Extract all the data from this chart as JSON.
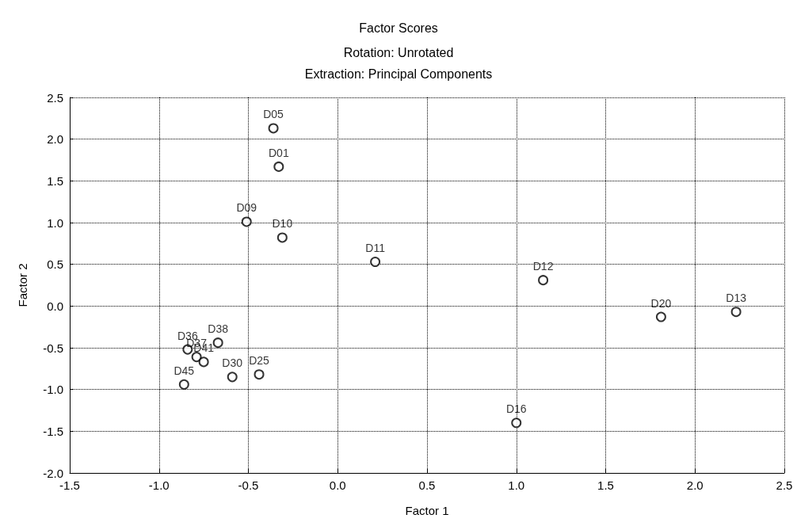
{
  "chart_data": {
    "type": "scatter",
    "title": "Factor Scores",
    "subtitle": "Rotation: Unrotated\nExtraction: Principal Components",
    "xlabel": "Factor 1",
    "ylabel": "Factor 2",
    "xlim": [
      -1.5,
      2.5
    ],
    "ylim": [
      -2.0,
      2.5
    ],
    "xticks": [
      {
        "value": -1.5,
        "label": "-1.5"
      },
      {
        "value": -1,
        "label": "-1.0"
      },
      {
        "value": -0.5,
        "label": "-0.5"
      },
      {
        "value": 0,
        "label": "0.0"
      },
      {
        "value": 0.5,
        "label": "0.5"
      },
      {
        "value": 1,
        "label": "1.0"
      },
      {
        "value": 1.5,
        "label": "1.5"
      },
      {
        "value": 2,
        "label": "2.0"
      },
      {
        "value": 2.5,
        "label": "2.5"
      }
    ],
    "yticks": [
      {
        "value": -2,
        "label": "-2.0"
      },
      {
        "value": -1.5,
        "label": "-1.5"
      },
      {
        "value": -1,
        "label": "-1.0"
      },
      {
        "value": -0.5,
        "label": "-0.5"
      },
      {
        "value": 0,
        "label": "0.0"
      },
      {
        "value": 0.5,
        "label": "0.5"
      },
      {
        "value": 1,
        "label": "1.0"
      },
      {
        "value": 1.5,
        "label": "1.5"
      },
      {
        "value": 2,
        "label": "2.0"
      },
      {
        "value": 2.5,
        "label": "2.5"
      }
    ],
    "grid": true,
    "marker": "circle",
    "legend": false,
    "series": [
      {
        "name": "D05",
        "color": "#000000",
        "x": [
          -0.36
        ],
        "values": [
          2.13
        ]
      },
      {
        "name": "D01",
        "color": "#000000",
        "x": [
          -0.33
        ],
        "values": [
          1.67
        ]
      },
      {
        "name": "D09",
        "color": "#000000",
        "x": [
          -0.51
        ],
        "values": [
          1.01
        ]
      },
      {
        "name": "D10",
        "color": "#000000",
        "x": [
          -0.31
        ],
        "values": [
          0.82
        ]
      },
      {
        "name": "D11",
        "color": "#000000",
        "x": [
          0.21
        ],
        "values": [
          0.53
        ]
      },
      {
        "name": "D12",
        "color": "#000000",
        "x": [
          1.15
        ],
        "values": [
          0.31
        ]
      },
      {
        "name": "D20",
        "color": "#000000",
        "x": [
          1.81
        ],
        "values": [
          -0.13
        ]
      },
      {
        "name": "D13",
        "color": "#000000",
        "x": [
          2.23
        ],
        "values": [
          -0.07
        ]
      },
      {
        "name": "D16",
        "color": "#000000",
        "x": [
          1.0
        ],
        "values": [
          -1.4
        ]
      },
      {
        "name": "D38",
        "color": "#000000",
        "x": [
          -0.67
        ],
        "values": [
          -0.44
        ]
      },
      {
        "name": "D36",
        "color": "#000000",
        "x": [
          -0.84
        ],
        "values": [
          -0.52
        ]
      },
      {
        "name": "D37",
        "color": "#000000",
        "x": [
          -0.79
        ],
        "values": [
          -0.61
        ]
      },
      {
        "name": "D41",
        "color": "#000000",
        "x": [
          -0.75
        ],
        "values": [
          -0.67
        ]
      },
      {
        "name": "D30",
        "color": "#000000",
        "x": [
          -0.59
        ],
        "values": [
          -0.85
        ]
      },
      {
        "name": "D25",
        "color": "#000000",
        "x": [
          -0.44
        ],
        "values": [
          -0.82
        ]
      },
      {
        "name": "D45",
        "color": "#000000",
        "x": [
          -0.86
        ],
        "values": [
          -0.94
        ]
      }
    ]
  }
}
